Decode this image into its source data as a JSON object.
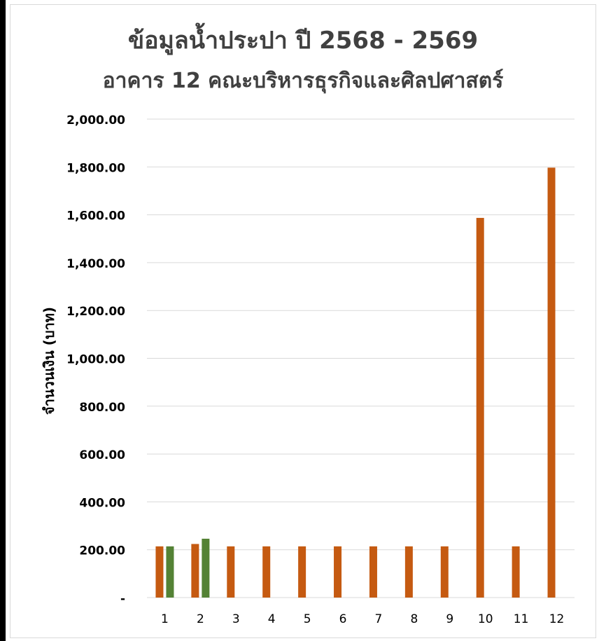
{
  "chart_data": {
    "type": "bar",
    "title_parts": [
      "ข้อมูลน้ำประปา ปี ",
      "2568 - 2569"
    ],
    "subtitle": "อาคาร 12 คณะบริหารธุรกิจและศิลปศาสตร์",
    "xlabel": "",
    "ylabel": "จำนวนเงิน (บาท)",
    "categories": [
      "1",
      "2",
      "3",
      "4",
      "5",
      "6",
      "7",
      "8",
      "9",
      "10",
      "11",
      "12"
    ],
    "series": [
      {
        "color": "#c55a11",
        "values": [
          214,
          224,
          214,
          214,
          214,
          214,
          214,
          214,
          214,
          1587,
          214,
          1797
        ]
      },
      {
        "color": "#548235",
        "values": [
          214,
          246,
          null,
          null,
          null,
          null,
          null,
          null,
          null,
          null,
          null,
          null
        ]
      }
    ],
    "ylim": [
      0,
      2000
    ],
    "yticks": [
      0,
      200,
      400,
      600,
      800,
      1000,
      1200,
      1400,
      1600,
      1800,
      2000
    ],
    "ytick_labels": [
      "-",
      "200.00",
      "400.00",
      "600.00",
      "800.00",
      "1,000.00",
      "1,200.00",
      "1,400.00",
      "1,600.00",
      "1,800.00",
      "2,000.00"
    ],
    "grid": true,
    "gridline_color": "#d9d9d9",
    "legend": "none"
  }
}
